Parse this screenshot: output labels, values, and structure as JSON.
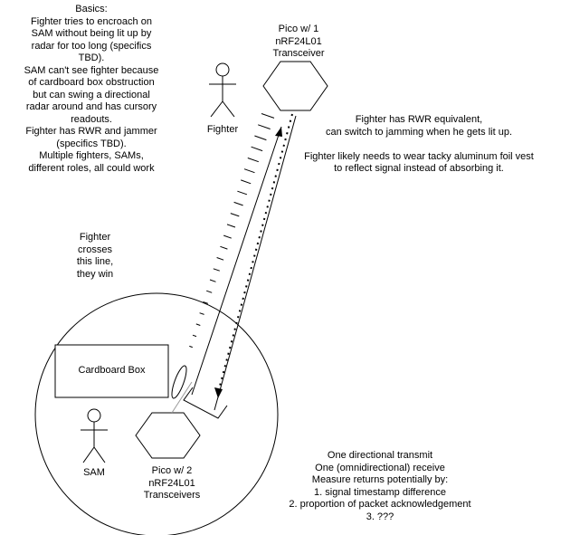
{
  "notes": {
    "basics": [
      "Basics:",
      "Fighter tries to encroach on",
      "SAM without being lit up by",
      "radar for too long (specifics",
      "TBD).",
      "SAM can't see fighter because",
      "of cardboard box obstruction",
      "but can swing a directional",
      "radar around and has cursory",
      "readouts.",
      "Fighter has RWR and jammer",
      "(specifics TBD).",
      "Multiple fighters, SAMs,",
      "different roles, all could work"
    ],
    "rwr": [
      "Fighter has RWR equivalent,",
      "can switch to jamming when he gets lit up.",
      "",
      "Fighter likely needs to wear tacky aluminum foil vest",
      "to reflect signal instead of absorbing it."
    ],
    "crosses": [
      "Fighter",
      "crosses",
      "this line,",
      "they win"
    ],
    "measure": [
      "One directional transmit",
      "One (omnidirectional) receive",
      "Measure returns potentially by:",
      "1. signal timestamp difference",
      "2. proportion of packet acknowledgement",
      "3. ???"
    ]
  },
  "pico_top": [
    "Pico w/ 1",
    "nRF24L01",
    "Transceiver"
  ],
  "pico_bottom": [
    "Pico w/ 2",
    "nRF24L01",
    "Transceivers"
  ],
  "fighter_label": "Fighter",
  "sam_label": "SAM",
  "cardboard_label": "Cardboard Box"
}
